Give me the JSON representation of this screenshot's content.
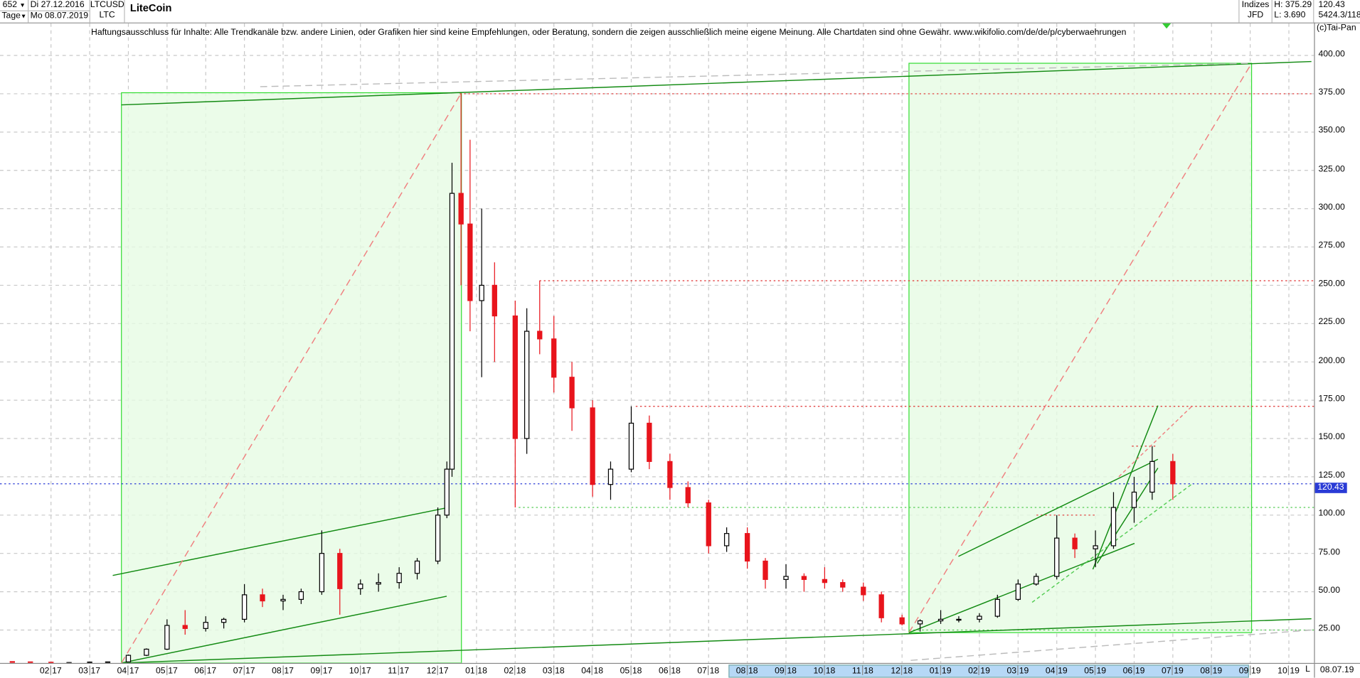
{
  "header": {
    "count": "652",
    "period": "Tage",
    "date_from": "Di 27.12.2016",
    "date_to": "Mo 08.07.2019",
    "symbol": "LTCUSD",
    "short": "LTC",
    "name": "LiteCoin",
    "group": "Indizes",
    "source": "JFD",
    "high": "H: 375.29",
    "low": "L: 3.690",
    "last": "120.43",
    "extra": "5424.3/118",
    "copyright": "(c)Tai-Pan"
  },
  "disclaimer": "Haftungsausschluss für Inhalte: Alle Trendkanäle bzw. andere Linien, oder Grafiken hier sind keine Empfehlungen, oder Beratung, sondern die zeigen ausschließlich meine eigene Meinung. Alle Chartdaten sind ohne Gewähr.  www.wikifolio.com/de/de/p/cyberwaehrungen",
  "x_axis_end": {
    "scale_button": "L",
    "date": "08.07.19"
  },
  "colors": {
    "up": "#000000",
    "down": "#e8141c",
    "box_fill": "#e6fbe4",
    "box_stroke": "#33dd33",
    "trend": "#128a12",
    "last_line": "#2a3bd6"
  },
  "chart_data": {
    "type": "candlestick",
    "ylim": [
      0,
      410
    ],
    "y_ticks": [
      "25.00",
      "50.00",
      "75.00",
      "100.00",
      "125.00",
      "150.00",
      "175.00",
      "200.00",
      "225.00",
      "250.00",
      "275.00",
      "300.00",
      "325.00",
      "350.00",
      "375.00",
      "400.00"
    ],
    "x_ticks": [
      [
        "02",
        "17"
      ],
      [
        "03",
        "17"
      ],
      [
        "04",
        "17"
      ],
      [
        "05",
        "17"
      ],
      [
        "06",
        "17"
      ],
      [
        "07",
        "17"
      ],
      [
        "08",
        "17"
      ],
      [
        "09",
        "17"
      ],
      [
        "10",
        "17"
      ],
      [
        "11",
        "17"
      ],
      [
        "12",
        "17"
      ],
      [
        "01",
        "18"
      ],
      [
        "02",
        "18"
      ],
      [
        "03",
        "18"
      ],
      [
        "04",
        "18"
      ],
      [
        "05",
        "18"
      ],
      [
        "06",
        "18"
      ],
      [
        "07",
        "18"
      ],
      [
        "08",
        "18"
      ],
      [
        "09",
        "18"
      ],
      [
        "10",
        "18"
      ],
      [
        "11",
        "18"
      ],
      [
        "12",
        "18"
      ],
      [
        "01",
        "19"
      ],
      [
        "02",
        "19"
      ],
      [
        "03",
        "19"
      ],
      [
        "04",
        "19"
      ],
      [
        "05",
        "19"
      ],
      [
        "06",
        "19"
      ],
      [
        "07",
        "19"
      ],
      [
        "08",
        "19"
      ],
      [
        "09",
        "19"
      ],
      [
        "10",
        "19"
      ]
    ],
    "last_value": "120.43",
    "grid": true,
    "ohlc_columns": [
      "date",
      "open",
      "high",
      "low",
      "close"
    ],
    "ohlc": [
      [
        "2017-01-01",
        4.4,
        4.6,
        3.69,
        4.2
      ],
      [
        "2017-01-15",
        4.2,
        4.3,
        3.8,
        4.0
      ],
      [
        "2017-02-01",
        4.0,
        4.2,
        3.7,
        3.8
      ],
      [
        "2017-02-15",
        3.8,
        4.0,
        3.7,
        3.8
      ],
      [
        "2017-03-01",
        3.8,
        4.3,
        3.7,
        4.1
      ],
      [
        "2017-03-15",
        4.1,
        4.3,
        3.9,
        4.2
      ],
      [
        "2017-04-01",
        4.2,
        9,
        4.1,
        8.5
      ],
      [
        "2017-04-15",
        8.5,
        13,
        8,
        12.5
      ],
      [
        "2017-05-01",
        12.5,
        32,
        12,
        28
      ],
      [
        "2017-05-15",
        28,
        38,
        22,
        26
      ],
      [
        "2017-06-01",
        26,
        34,
        24,
        30
      ],
      [
        "2017-06-15",
        30,
        33,
        26,
        32
      ],
      [
        "2017-07-01",
        32,
        55,
        30,
        48
      ],
      [
        "2017-07-15",
        48,
        52,
        40,
        44
      ],
      [
        "2017-08-01",
        44,
        48,
        38,
        45
      ],
      [
        "2017-08-15",
        45,
        52,
        42,
        50
      ],
      [
        "2017-09-01",
        50,
        90,
        48,
        75
      ],
      [
        "2017-09-15",
        75,
        78,
        35,
        52
      ],
      [
        "2017-10-01",
        52,
        58,
        48,
        55
      ],
      [
        "2017-10-15",
        55,
        62,
        50,
        56
      ],
      [
        "2017-11-01",
        56,
        66,
        52,
        62
      ],
      [
        "2017-11-15",
        62,
        72,
        58,
        70
      ],
      [
        "2017-12-01",
        70,
        105,
        68,
        100
      ],
      [
        "2017-12-08",
        100,
        135,
        98,
        130
      ],
      [
        "2017-12-12",
        130,
        330,
        125,
        310
      ],
      [
        "2017-12-19",
        310,
        375.29,
        250,
        290
      ],
      [
        "2017-12-26",
        290,
        345,
        220,
        240
      ],
      [
        "2018-01-05",
        240,
        300,
        190,
        250
      ],
      [
        "2018-01-15",
        250,
        265,
        200,
        230
      ],
      [
        "2018-02-01",
        230,
        240,
        105,
        150
      ],
      [
        "2018-02-10",
        150,
        235,
        140,
        220
      ],
      [
        "2018-02-20",
        220,
        253,
        205,
        215
      ],
      [
        "2018-03-01",
        215,
        230,
        180,
        190
      ],
      [
        "2018-03-15",
        190,
        200,
        155,
        170
      ],
      [
        "2018-04-01",
        170,
        175,
        112,
        120
      ],
      [
        "2018-04-15",
        120,
        135,
        110,
        130
      ],
      [
        "2018-05-01",
        130,
        171,
        128,
        160
      ],
      [
        "2018-05-15",
        160,
        165,
        130,
        135
      ],
      [
        "2018-06-01",
        135,
        140,
        110,
        118
      ],
      [
        "2018-06-15",
        118,
        122,
        105,
        108
      ],
      [
        "2018-07-01",
        108,
        110,
        75,
        80
      ],
      [
        "2018-07-15",
        80,
        92,
        76,
        88
      ],
      [
        "2018-08-01",
        88,
        92,
        65,
        70
      ],
      [
        "2018-08-15",
        70,
        72,
        52,
        58
      ],
      [
        "2018-09-01",
        58,
        68,
        52,
        60
      ],
      [
        "2018-09-15",
        60,
        62,
        50,
        58
      ],
      [
        "2018-10-01",
        58,
        66,
        52,
        56
      ],
      [
        "2018-10-15",
        56,
        58,
        50,
        53
      ],
      [
        "2018-11-01",
        53,
        56,
        44,
        48
      ],
      [
        "2018-11-15",
        48,
        50,
        30,
        33
      ],
      [
        "2018-12-01",
        33,
        35,
        28,
        29
      ],
      [
        "2018-12-15",
        29,
        32,
        24,
        31
      ],
      [
        "2019-01-01",
        31,
        38,
        29,
        32
      ],
      [
        "2019-01-15",
        32,
        34,
        30,
        32
      ],
      [
        "2019-02-01",
        32,
        36,
        30,
        34
      ],
      [
        "2019-02-15",
        34,
        48,
        33,
        45
      ],
      [
        "2019-03-01",
        45,
        58,
        44,
        55
      ],
      [
        "2019-03-15",
        55,
        62,
        54,
        60
      ],
      [
        "2019-04-01",
        60,
        100,
        58,
        85
      ],
      [
        "2019-04-15",
        85,
        88,
        72,
        78
      ],
      [
        "2019-05-01",
        78,
        90,
        66,
        80
      ],
      [
        "2019-05-15",
        80,
        115,
        78,
        105
      ],
      [
        "2019-06-01",
        105,
        125,
        95,
        115
      ],
      [
        "2019-06-15",
        115,
        145,
        110,
        135
      ],
      [
        "2019-07-01",
        135,
        140,
        110,
        120.43
      ]
    ],
    "horizontal_levels": [
      {
        "value": 375,
        "style": "red-dotted"
      },
      {
        "value": 253,
        "style": "red-dotted"
      },
      {
        "value": 171,
        "style": "red-dotted"
      },
      {
        "value": 120.43,
        "style": "blue-dotted"
      },
      {
        "value": 105,
        "style": "green-dotted"
      }
    ]
  }
}
